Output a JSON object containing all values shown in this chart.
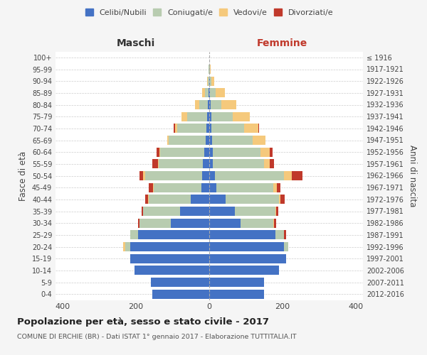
{
  "age_groups_bottom_to_top": [
    "0-4",
    "5-9",
    "10-14",
    "15-19",
    "20-24",
    "25-29",
    "30-34",
    "35-39",
    "40-44",
    "45-49",
    "50-54",
    "55-59",
    "60-64",
    "65-69",
    "70-74",
    "75-79",
    "80-84",
    "85-89",
    "90-94",
    "95-99",
    "100+"
  ],
  "birth_years_bottom_to_top": [
    "2012-2016",
    "2007-2011",
    "2002-2006",
    "1997-2001",
    "1992-1996",
    "1987-1991",
    "1982-1986",
    "1977-1981",
    "1972-1976",
    "1967-1971",
    "1962-1966",
    "1957-1961",
    "1952-1956",
    "1947-1951",
    "1942-1946",
    "1937-1941",
    "1932-1936",
    "1927-1931",
    "1922-1926",
    "1917-1921",
    "≤ 1916"
  ],
  "males_celibi_btt": [
    155,
    160,
    205,
    215,
    215,
    195,
    105,
    80,
    50,
    22,
    20,
    18,
    14,
    10,
    8,
    5,
    3,
    1,
    0,
    0,
    0
  ],
  "males_coniugati_btt": [
    0,
    0,
    0,
    0,
    15,
    20,
    85,
    100,
    115,
    130,
    155,
    120,
    120,
    100,
    80,
    55,
    25,
    10,
    3,
    1,
    0
  ],
  "males_vedovi_btt": [
    0,
    0,
    0,
    0,
    5,
    0,
    0,
    0,
    2,
    2,
    5,
    2,
    2,
    5,
    5,
    15,
    10,
    8,
    3,
    1,
    0
  ],
  "males_divorziati_btt": [
    0,
    0,
    0,
    0,
    0,
    0,
    5,
    5,
    8,
    12,
    10,
    15,
    8,
    0,
    5,
    0,
    0,
    0,
    0,
    0,
    0
  ],
  "females_nubili_btt": [
    150,
    150,
    190,
    210,
    205,
    180,
    85,
    70,
    45,
    20,
    15,
    10,
    10,
    8,
    5,
    5,
    3,
    2,
    1,
    0,
    0
  ],
  "females_coniugate_btt": [
    0,
    0,
    0,
    0,
    10,
    25,
    90,
    110,
    145,
    155,
    190,
    140,
    130,
    110,
    90,
    60,
    30,
    15,
    5,
    2,
    0
  ],
  "females_vedove_btt": [
    0,
    0,
    0,
    0,
    0,
    0,
    2,
    3,
    5,
    10,
    20,
    15,
    25,
    35,
    40,
    45,
    40,
    25,
    8,
    2,
    0
  ],
  "females_divorziate_btt": [
    0,
    0,
    0,
    0,
    0,
    5,
    5,
    5,
    12,
    10,
    30,
    12,
    8,
    0,
    2,
    0,
    0,
    0,
    0,
    0,
    0
  ],
  "colors": {
    "celibi": "#4472C4",
    "coniugati": "#B8CCB0",
    "vedovi": "#F5C97C",
    "divorziati": "#C0392B"
  },
  "xlim": 420,
  "title": "Popolazione per età, sesso e stato civile - 2017",
  "subtitle": "COMUNE DI ERCHIE (BR) - Dati ISTAT 1° gennaio 2017 - Elaborazione TUTTITALIA.IT",
  "ylabel_left": "Fasce di età",
  "ylabel_right": "Anni di nascita",
  "xlabel_maschi": "Maschi",
  "xlabel_femmine": "Femmine",
  "bg_color": "#f5f5f5",
  "plot_bg_color": "#ffffff",
  "legend_labels": [
    "Celibi/Nubili",
    "Coniugati/e",
    "Vedovi/e",
    "Divorziati/e"
  ]
}
